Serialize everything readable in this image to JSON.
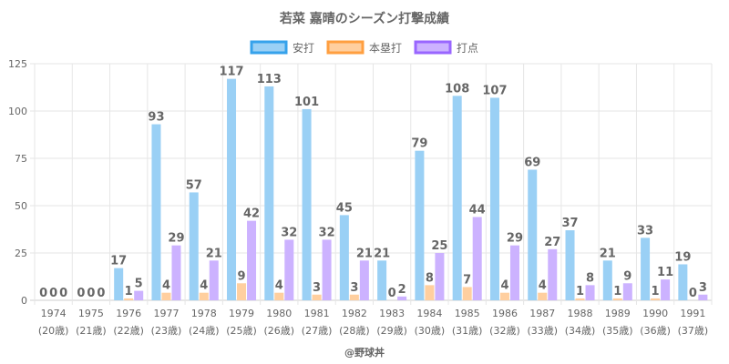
{
  "chart_data": {
    "type": "bar",
    "title": "若菜 嘉晴のシーズン打撃成績",
    "categories": [
      [
        "1974",
        "(20歳)"
      ],
      [
        "1975",
        "(21歳)"
      ],
      [
        "1976",
        "(22歳)"
      ],
      [
        "1977",
        "(23歳)"
      ],
      [
        "1978",
        "(24歳)"
      ],
      [
        "1979",
        "(25歳)"
      ],
      [
        "1980",
        "(26歳)"
      ],
      [
        "1981",
        "(27歳)"
      ],
      [
        "1982",
        "(28歳)"
      ],
      [
        "1983",
        "(29歳)"
      ],
      [
        "1984",
        "(30歳)"
      ],
      [
        "1985",
        "(31歳)"
      ],
      [
        "1986",
        "(32歳)"
      ],
      [
        "1987",
        "(33歳)"
      ],
      [
        "1988",
        "(34歳)"
      ],
      [
        "1989",
        "(35歳)"
      ],
      [
        "1990",
        "(36歳)"
      ],
      [
        "1991",
        "(37歳)"
      ]
    ],
    "series": [
      {
        "name": "安打",
        "color": "#9ad0f5",
        "border": "#36a2eb",
        "values": [
          0,
          0,
          17,
          93,
          57,
          117,
          113,
          101,
          45,
          21,
          79,
          108,
          107,
          69,
          37,
          21,
          33,
          19
        ]
      },
      {
        "name": "本塁打",
        "color": "#ffcf9f",
        "border": "#ff9f40",
        "values": [
          0,
          0,
          1,
          4,
          4,
          9,
          4,
          3,
          3,
          0,
          8,
          7,
          4,
          4,
          1,
          1,
          1,
          0
        ]
      },
      {
        "name": "打点",
        "color": "#ccb2ff",
        "border": "#9966ff",
        "values": [
          0,
          0,
          5,
          29,
          21,
          42,
          32,
          32,
          21,
          2,
          25,
          44,
          29,
          27,
          8,
          9,
          11,
          3
        ]
      }
    ],
    "ylim": [
      0,
      125
    ],
    "yticks": [
      0,
      25,
      50,
      75,
      100,
      125
    ],
    "grid": true,
    "legend": "top-center",
    "credit": "@野球丼"
  }
}
